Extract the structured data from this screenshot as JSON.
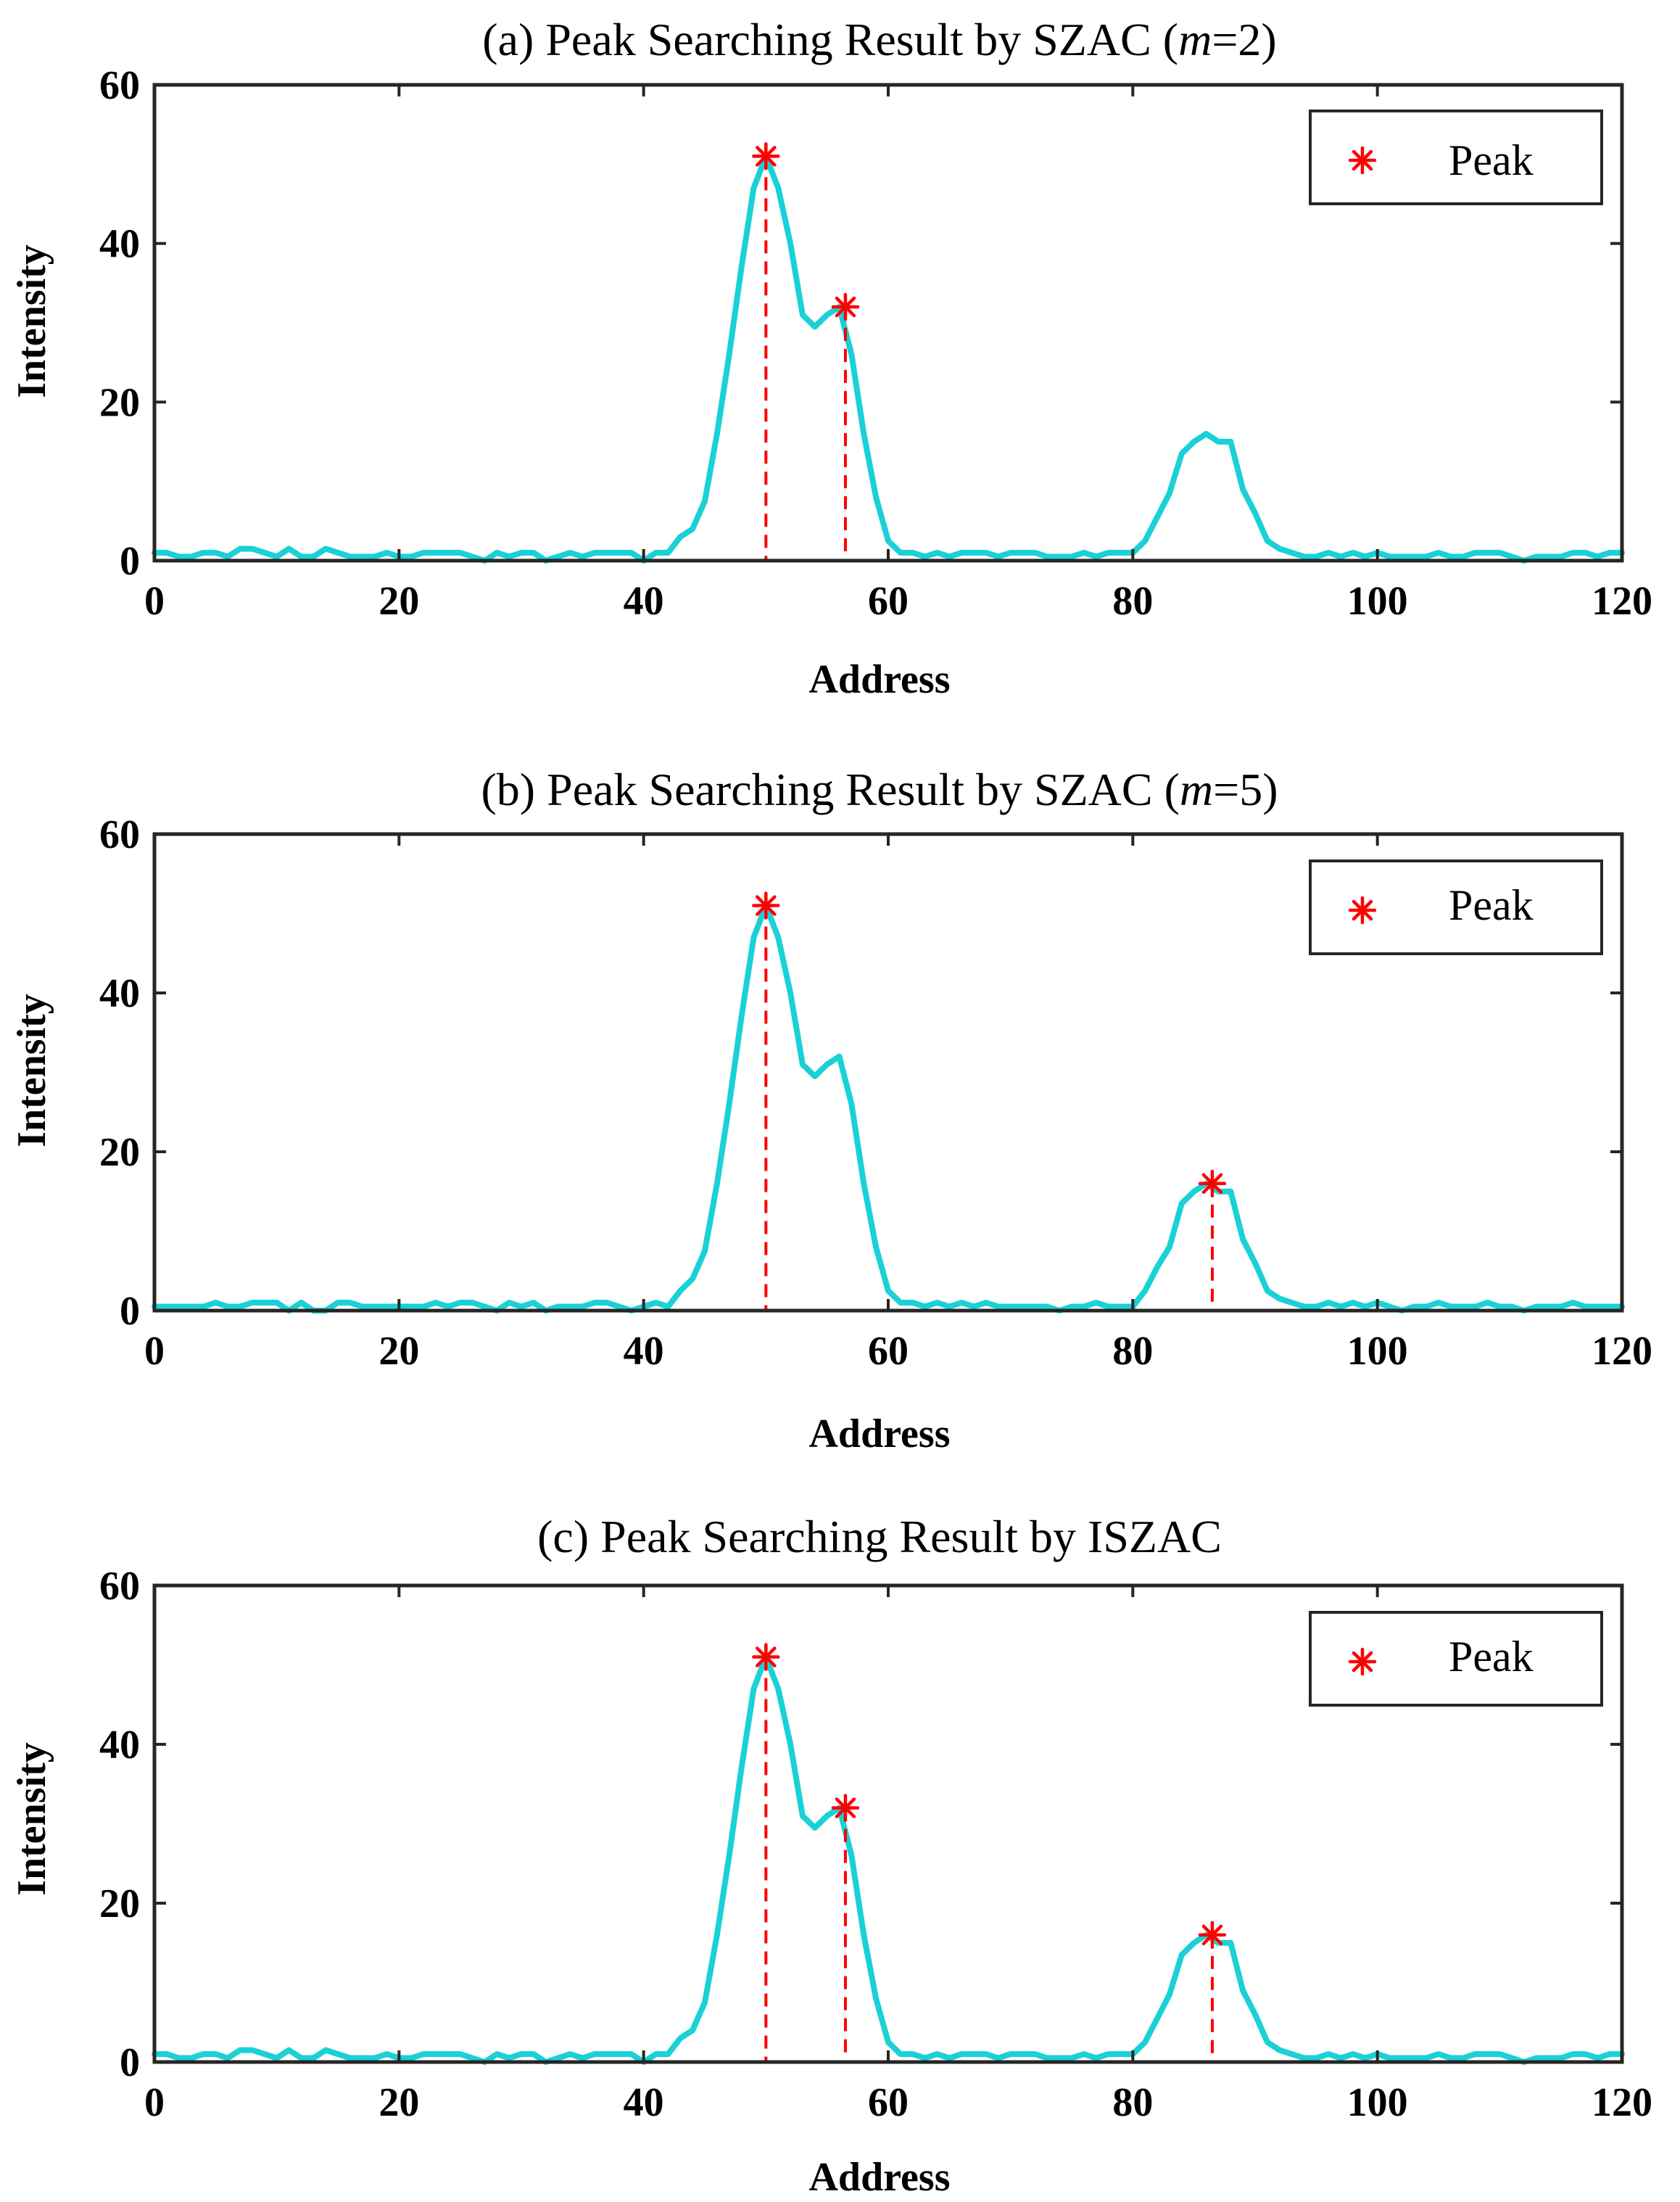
{
  "colors": {
    "signal": "#19D1D6",
    "peak": "#FF0000",
    "axis": "#262626",
    "background": "#FFFFFF"
  },
  "signal_x_start": 0,
  "signal_x_step": 1,
  "signal_a": [
    1,
    1,
    0.5,
    0.5,
    1,
    1,
    0.5,
    1.5,
    1.5,
    1,
    0.5,
    1.5,
    0.5,
    0.5,
    1.5,
    1,
    0.5,
    0.5,
    0.5,
    1,
    0.5,
    0.5,
    1,
    1,
    1,
    1,
    0.5,
    0,
    1,
    0.5,
    1,
    1,
    0,
    0.5,
    1,
    0.5,
    1,
    1,
    1,
    1,
    0,
    1,
    1,
    3,
    4,
    7.5,
    16,
    26,
    37,
    47,
    51,
    47,
    40,
    31,
    29.5,
    31,
    32,
    26,
    16,
    8,
    2.5,
    1,
    1,
    0.5,
    1,
    0.5,
    1,
    1,
    1,
    0.5,
    1,
    1,
    1,
    0.5,
    0.5,
    0.5,
    1,
    0.5,
    1,
    1,
    1,
    2.5,
    5.5,
    8.5,
    13.5,
    15,
    16,
    15,
    15,
    9,
    6,
    2.5,
    1.5,
    1,
    0.5,
    0.5,
    1,
    0.5,
    1,
    0.5,
    1,
    0.5,
    0.5,
    0.5,
    0.5,
    1,
    0.5,
    0.5,
    1,
    1,
    1,
    0.5,
    0,
    0.5,
    0.5,
    0.5,
    1,
    1,
    0.5,
    1,
    1
  ],
  "signal_b": [
    0.5,
    0.5,
    0.5,
    0.5,
    0.5,
    1,
    0.5,
    0.5,
    1,
    1,
    1,
    0,
    1,
    0,
    0,
    1,
    1,
    0.5,
    0.5,
    0.5,
    0.5,
    0.5,
    0.5,
    1,
    0.5,
    1,
    1,
    0.5,
    0,
    1,
    0.5,
    1,
    0,
    0.5,
    0.5,
    0.5,
    1,
    1,
    0.5,
    0,
    0.5,
    1,
    0.5,
    2.5,
    4,
    7.5,
    16,
    26,
    37,
    47,
    51,
    47,
    40,
    31,
    29.5,
    31,
    32,
    26,
    16,
    8,
    2.5,
    1,
    1,
    0.5,
    1,
    0.5,
    1,
    0.5,
    1,
    0.5,
    0.5,
    0.5,
    0.5,
    0.5,
    0,
    0.5,
    0.5,
    1,
    0.5,
    0.5,
    0.5,
    2.5,
    5.5,
    8,
    13.5,
    15,
    16,
    15,
    15,
    9,
    6,
    2.5,
    1.5,
    1,
    0.5,
    0.5,
    1,
    0.5,
    1,
    0.5,
    1,
    0.5,
    0,
    0.5,
    0.5,
    1,
    0.5,
    0.5,
    0.5,
    1,
    0.5,
    0.5,
    0,
    0.5,
    0.5,
    0.5,
    1,
    0.5,
    0.5,
    0.5,
    0.5
  ],
  "chart_data": [
    {
      "type": "line",
      "title_main": "(a) Peak Searching Result by SZAC (",
      "title_italic": "m",
      "title_tail": "=2)",
      "xlabel": "Address",
      "ylabel": "Intensity",
      "xlim": [
        0,
        120
      ],
      "ylim": [
        0,
        60
      ],
      "xticks": [
        "0",
        "20",
        "40",
        "60",
        "80",
        "100",
        "120"
      ],
      "yticks": [
        "0",
        "20",
        "40",
        "60"
      ],
      "series": [
        {
          "name": "Signal",
          "signal_ref": "signal_a"
        },
        {
          "name": "Peak",
          "type": "scatter",
          "x": [
            50,
            56.5
          ],
          "y": [
            51,
            32
          ]
        }
      ],
      "legend": {
        "label": "Peak",
        "location": "top-right"
      }
    },
    {
      "type": "line",
      "title_main": "(b) Peak Searching Result by SZAC (",
      "title_italic": "m",
      "title_tail": "=5)",
      "xlabel": "Address",
      "ylabel": "Intensity",
      "xlim": [
        0,
        120
      ],
      "ylim": [
        0,
        60
      ],
      "xticks": [
        "0",
        "20",
        "40",
        "60",
        "80",
        "100",
        "120"
      ],
      "yticks": [
        "0",
        "20",
        "40",
        "60"
      ],
      "series": [
        {
          "name": "Signal",
          "signal_ref": "signal_b"
        },
        {
          "name": "Peak",
          "type": "scatter",
          "x": [
            50,
            86.5
          ],
          "y": [
            51,
            16
          ]
        }
      ],
      "legend": {
        "label": "Peak",
        "location": "top-right"
      }
    },
    {
      "type": "line",
      "title_main": "(c) Peak Searching Result by ISZAC",
      "title_italic": "",
      "title_tail": "",
      "xlabel": "Address",
      "ylabel": "Intensity",
      "xlim": [
        0,
        120
      ],
      "ylim": [
        0,
        60
      ],
      "xticks": [
        "0",
        "20",
        "40",
        "60",
        "80",
        "100",
        "120"
      ],
      "yticks": [
        "0",
        "20",
        "40",
        "60"
      ],
      "series": [
        {
          "name": "Signal",
          "signal_ref": "signal_a"
        },
        {
          "name": "Peak",
          "type": "scatter",
          "x": [
            50,
            56.5,
            86.5
          ],
          "y": [
            51,
            32,
            16
          ]
        }
      ],
      "legend": {
        "label": "Peak",
        "location": "top-right"
      }
    }
  ]
}
